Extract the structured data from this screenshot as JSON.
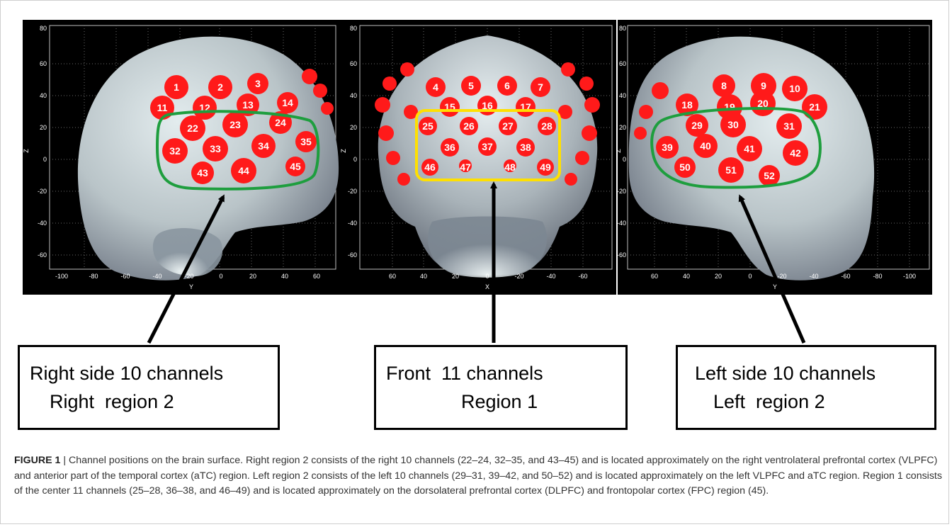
{
  "panels": [
    {
      "id": "right",
      "axis_x_title": "Y",
      "axis_y_title": "Z",
      "x_ticks": [
        "-100",
        "-80",
        "-60",
        "-40",
        "-20",
        "0",
        "20",
        "40",
        "60"
      ],
      "y_ticks": [
        "80",
        "60",
        "40",
        "20",
        "0",
        "-20",
        "-40",
        "-60"
      ],
      "channels": [
        "1",
        "2",
        "3",
        "11",
        "12",
        "13",
        "14",
        "22",
        "23",
        "24",
        "32",
        "33",
        "34",
        "35",
        "43",
        "44",
        "45"
      ]
    },
    {
      "id": "front",
      "axis_x_title": "X",
      "axis_y_title": "Z",
      "x_ticks": [
        "60",
        "40",
        "20",
        "0",
        "-20",
        "-40",
        "-60"
      ],
      "y_ticks": [
        "80",
        "60",
        "40",
        "20",
        "0",
        "-20",
        "-40",
        "-60"
      ],
      "channels": [
        "4",
        "5",
        "6",
        "7",
        "15",
        "16",
        "17",
        "25",
        "26",
        "27",
        "28",
        "36",
        "37",
        "38",
        "46",
        "47",
        "48",
        "49"
      ]
    },
    {
      "id": "left",
      "axis_x_title": "Y",
      "axis_y_title": "Z",
      "x_ticks": [
        "60",
        "40",
        "20",
        "0",
        "-20",
        "-40",
        "-60",
        "-80",
        "-100"
      ],
      "y_ticks": [
        "80",
        "60",
        "40",
        "20",
        "0",
        "-20",
        "-40",
        "-60"
      ],
      "channels": [
        "8",
        "9",
        "10",
        "18",
        "19",
        "20",
        "21",
        "29",
        "30",
        "31",
        "39",
        "40",
        "41",
        "42",
        "50",
        "51",
        "52"
      ]
    }
  ],
  "labels": [
    {
      "line1": "Right side 10 channels",
      "line2": "Right  region 2"
    },
    {
      "line1": "Front  11 channels",
      "line2": "Region 1"
    },
    {
      "line1": "Left side 10 channels",
      "line2": "Left  region 2"
    }
  ],
  "caption": {
    "figure_label": "FIGURE 1",
    "separator": " | ",
    "text": "Channel positions on the brain surface. Right region 2 consists of the right 10 channels (22–24, 32–35, and 43–45) and is located approximately on the right ventrolateral prefrontal cortex (VLPFC) and anterior part of the temporal cortex (aTC) region. Left region 2 consists of the left 10 channels (29–31, 39–42, and 50–52) and is located approximately on the left VLPFC and aTC region. Region 1 consists of the center 11 channels (25–28, 36–38, and 46–49) and is located approximately on the dorsolateral prefrontal cortex (DLPFC) and frontopolar cortex (FPC) region (45)."
  },
  "colors": {
    "background": "#000000",
    "brain_light": "#dfe8ea",
    "brain_dark": "#5d6470",
    "channel_dot": "#ff0000",
    "region_side": "#1e9e3e",
    "region_front": "#ffe000",
    "arrow": "#000000"
  }
}
